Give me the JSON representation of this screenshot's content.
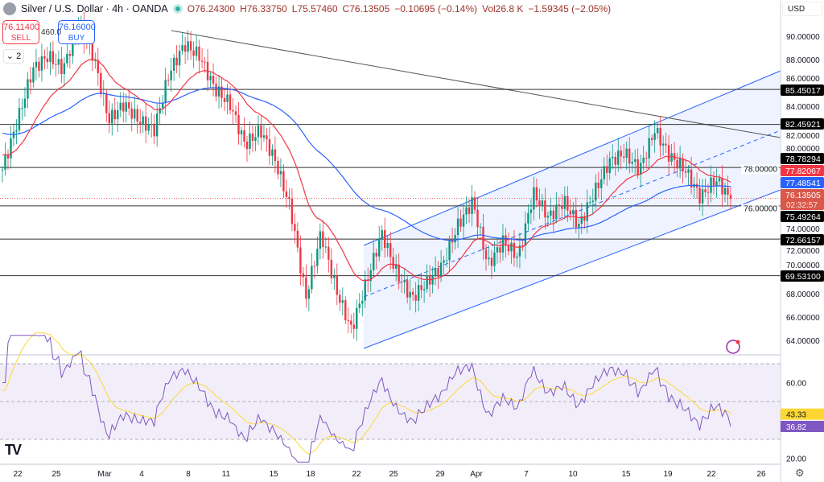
{
  "header": {
    "symbol": "Silver / U.S. Dollar · 4h · OANDA",
    "open": "O76.24300",
    "high": "H76.33750",
    "low": "L75.57460",
    "close": "C76.13505",
    "change": "−0.10695 (−0.14%)",
    "volume": "Vol26.8 K",
    "vol_change": "−1.59345 (−2.05%)"
  },
  "trade": {
    "sell_price": "76.11400",
    "sell_label": "SELL",
    "buy_price": "76.16000",
    "buy_label": "BUY",
    "stray_label": "460.0"
  },
  "collapse_label": "⌄ 2",
  "currency": "USD",
  "colors": {
    "up": "#089981",
    "down": "#f23645",
    "ema_fast": "#f23645",
    "ma_slow": "#2962ff",
    "rsi": "#7e57c2",
    "rsi_ma": "#fdd835",
    "channel": "#2962ff"
  },
  "chart_data": {
    "type": "candlestick",
    "price_axis_ticks": [
      "90.00000",
      "88.00000",
      "86.00000",
      "84.00000",
      "82.00000",
      "80.00000",
      "78.00000",
      "76.00000",
      "74.00000",
      "72.00000",
      "70.00000",
      "68.00000",
      "66.00000",
      "64.00000"
    ],
    "ylim": [
      63,
      92
    ],
    "time_ticks": [
      "22",
      "25",
      "Mar",
      "4",
      "8",
      "11",
      "15",
      "18",
      "22",
      "25",
      "29",
      "Apr",
      "7",
      "10",
      "15",
      "19",
      "22",
      "26"
    ],
    "closes": [
      78.6,
      82.8,
      87.2,
      88.3,
      87.2,
      91,
      88.3,
      82.8,
      84.2,
      82.8,
      82,
      86.9,
      89.3,
      88.3,
      85.5,
      84.2,
      80.7,
      82,
      79.3,
      75.2,
      67.6,
      73.2,
      68.3,
      64.9,
      69,
      73.2,
      69.7,
      67.6,
      69,
      70.4,
      73.8,
      75.9,
      70.4,
      72.5,
      71.1,
      76.6,
      74.5,
      75.9,
      73.8,
      76.6,
      79.3,
      80,
      78.6,
      82,
      79.7,
      78.6,
      76.2,
      77.8,
      76.135
    ],
    "levels": [
      {
        "price": 85.45017,
        "label": "85.45017"
      },
      {
        "price": 82.45921,
        "label": "82.45921"
      },
      {
        "price": 78.78294,
        "label": "78.78294"
      },
      {
        "price": 75.49264,
        "label": "75.49264"
      },
      {
        "price": 72.66157,
        "label": "72.66157"
      },
      {
        "price": 69.531,
        "label": "69.53100"
      }
    ],
    "ema_label": "77.82067",
    "ma_label": "77.48541",
    "last_price": "76.13505",
    "countdown": "02:32:57",
    "rsi": {
      "ticks": [
        "60.00",
        "20.00"
      ],
      "bands": [
        70,
        50,
        30
      ],
      "value": "36.82",
      "ma_value": "43.33"
    }
  }
}
